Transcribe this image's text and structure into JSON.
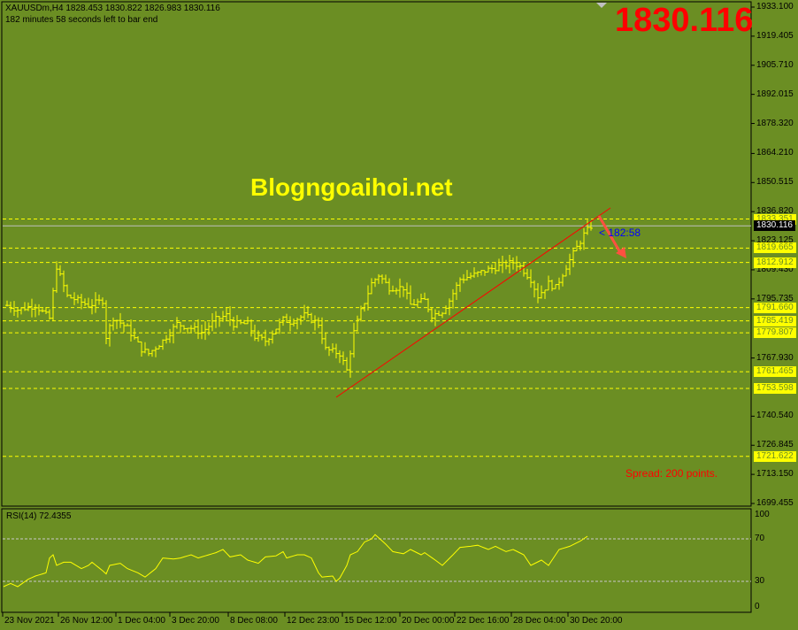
{
  "header": {
    "symbol_line": "XAUUSDm,H4  1828.453 1830.822 1826.983 1830.116",
    "timer_line": "182 minutes 58 seconds left to bar end"
  },
  "overlay": {
    "big_price": "1830.116",
    "watermark": "Blogngoaihoi.net",
    "spread": "Spread: 200 points.",
    "bar_timer": "< 182:58"
  },
  "colors": {
    "background": "#6b8e23",
    "bars": "#ffff00",
    "trendline": "#ff0000",
    "arrow": "#ff5040",
    "levels": "#ffff00",
    "rsi": "#ffff00"
  },
  "price_axis": [
    "1933.100",
    "1919.405",
    "1905.710",
    "1892.015",
    "1878.320",
    "1864.210",
    "1850.515",
    "1836.820",
    "1823.125",
    "1809.430",
    "1795.735",
    "1767.930",
    "1740.540",
    "1726.845",
    "1713.150",
    "1699.455"
  ],
  "levels": [
    "1833.351",
    "1819.665",
    "1812.912",
    "1791.660",
    "1785.419",
    "1779.807",
    "1761.465",
    "1753.598",
    "1721.622"
  ],
  "current_price": "1830.116",
  "time_axis": [
    "23 Nov 2021",
    "26 Nov 12:00",
    "1 Dec 04:00",
    "3 Dec 20:00",
    "8 Dec 08:00",
    "12 Dec 23:00",
    "15 Dec 12:00",
    "20 Dec 00:00",
    "22 Dec 16:00",
    "28 Dec 04:00",
    "30 Dec 20:00"
  ],
  "rsi": {
    "title": "RSI(14) 72.4355",
    "axis": [
      "100",
      "70",
      "30",
      "0"
    ]
  },
  "chart_data": {
    "type": "ohlc",
    "price_range": [
      1699.455,
      1933.1
    ],
    "close_anchors": [
      [
        0,
        1792.7
      ],
      [
        3,
        1790.7
      ],
      [
        8,
        1792.7
      ],
      [
        12,
        1786.5
      ],
      [
        14,
        1811
      ],
      [
        17,
        1797
      ],
      [
        20,
        1795
      ],
      [
        23,
        1792.7
      ],
      [
        27,
        1795
      ],
      [
        28,
        1778
      ],
      [
        30,
        1787
      ],
      [
        34,
        1782
      ],
      [
        38,
        1772
      ],
      [
        40,
        1770
      ],
      [
        44,
        1776
      ],
      [
        48,
        1784
      ],
      [
        52,
        1782
      ],
      [
        55,
        1780
      ],
      [
        59,
        1786
      ],
      [
        62,
        1788
      ],
      [
        64,
        1784
      ],
      [
        68,
        1784
      ],
      [
        70,
        1778
      ],
      [
        73,
        1776
      ],
      [
        75,
        1780
      ],
      [
        78,
        1786
      ],
      [
        80,
        1785
      ],
      [
        84,
        1788
      ],
      [
        88,
        1784
      ],
      [
        90,
        1772
      ],
      [
        94,
        1770
      ],
      [
        96,
        1762
      ],
      [
        98,
        1780
      ],
      [
        100,
        1790
      ],
      [
        103,
        1803
      ],
      [
        105,
        1807
      ],
      [
        108,
        1801
      ],
      [
        112,
        1801
      ],
      [
        114,
        1793
      ],
      [
        118,
        1795
      ],
      [
        120,
        1788
      ],
      [
        123,
        1790
      ],
      [
        125,
        1795
      ],
      [
        128,
        1805
      ],
      [
        132,
        1807
      ],
      [
        135,
        1809
      ],
      [
        139,
        1811
      ],
      [
        143,
        1813
      ],
      [
        145,
        1811
      ],
      [
        148,
        1805
      ],
      [
        150,
        1797
      ],
      [
        153,
        1803
      ],
      [
        155,
        1801
      ],
      [
        158,
        1811
      ],
      [
        160,
        1817
      ],
      [
        163,
        1826
      ],
      [
        165,
        1830
      ]
    ],
    "rsi_anchors": [
      [
        0,
        25
      ],
      [
        2,
        28
      ],
      [
        4,
        25
      ],
      [
        7,
        32
      ],
      [
        9,
        35
      ],
      [
        12,
        38
      ],
      [
        13,
        52
      ],
      [
        14,
        55
      ],
      [
        15,
        45
      ],
      [
        17,
        48
      ],
      [
        19,
        48
      ],
      [
        22,
        42
      ],
      [
        24,
        45
      ],
      [
        25,
        48
      ],
      [
        28,
        40
      ],
      [
        29,
        37
      ],
      [
        30,
        45
      ],
      [
        33,
        47
      ],
      [
        35,
        42
      ],
      [
        38,
        38
      ],
      [
        40,
        34
      ],
      [
        43,
        42
      ],
      [
        45,
        52
      ],
      [
        48,
        51
      ],
      [
        50,
        52
      ],
      [
        53,
        55
      ],
      [
        55,
        52
      ],
      [
        58,
        55
      ],
      [
        60,
        57
      ],
      [
        62,
        60
      ],
      [
        64,
        53
      ],
      [
        67,
        55
      ],
      [
        69,
        50
      ],
      [
        72,
        47
      ],
      [
        74,
        53
      ],
      [
        77,
        54
      ],
      [
        79,
        58
      ],
      [
        80,
        52
      ],
      [
        83,
        55
      ],
      [
        85,
        55
      ],
      [
        87,
        52
      ],
      [
        88,
        45
      ],
      [
        89,
        38
      ],
      [
        90,
        34
      ],
      [
        93,
        35
      ],
      [
        94,
        30
      ],
      [
        95,
        33
      ],
      [
        97,
        45
      ],
      [
        98,
        55
      ],
      [
        100,
        58
      ],
      [
        102,
        67
      ],
      [
        104,
        70
      ],
      [
        105,
        74
      ],
      [
        108,
        65
      ],
      [
        110,
        58
      ],
      [
        113,
        56
      ],
      [
        115,
        60
      ],
      [
        118,
        55
      ],
      [
        119,
        57
      ],
      [
        122,
        50
      ],
      [
        124,
        45
      ],
      [
        127,
        55
      ],
      [
        129,
        62
      ],
      [
        132,
        63
      ],
      [
        134,
        64
      ],
      [
        137,
        60
      ],
      [
        139,
        63
      ],
      [
        142,
        58
      ],
      [
        144,
        60
      ],
      [
        147,
        55
      ],
      [
        149,
        45
      ],
      [
        152,
        50
      ],
      [
        154,
        45
      ],
      [
        157,
        60
      ],
      [
        160,
        63
      ],
      [
        163,
        68
      ],
      [
        165,
        72.4355
      ]
    ],
    "rsi_range": [
      0,
      100
    ],
    "rsi_levels": [
      70,
      30
    ]
  }
}
